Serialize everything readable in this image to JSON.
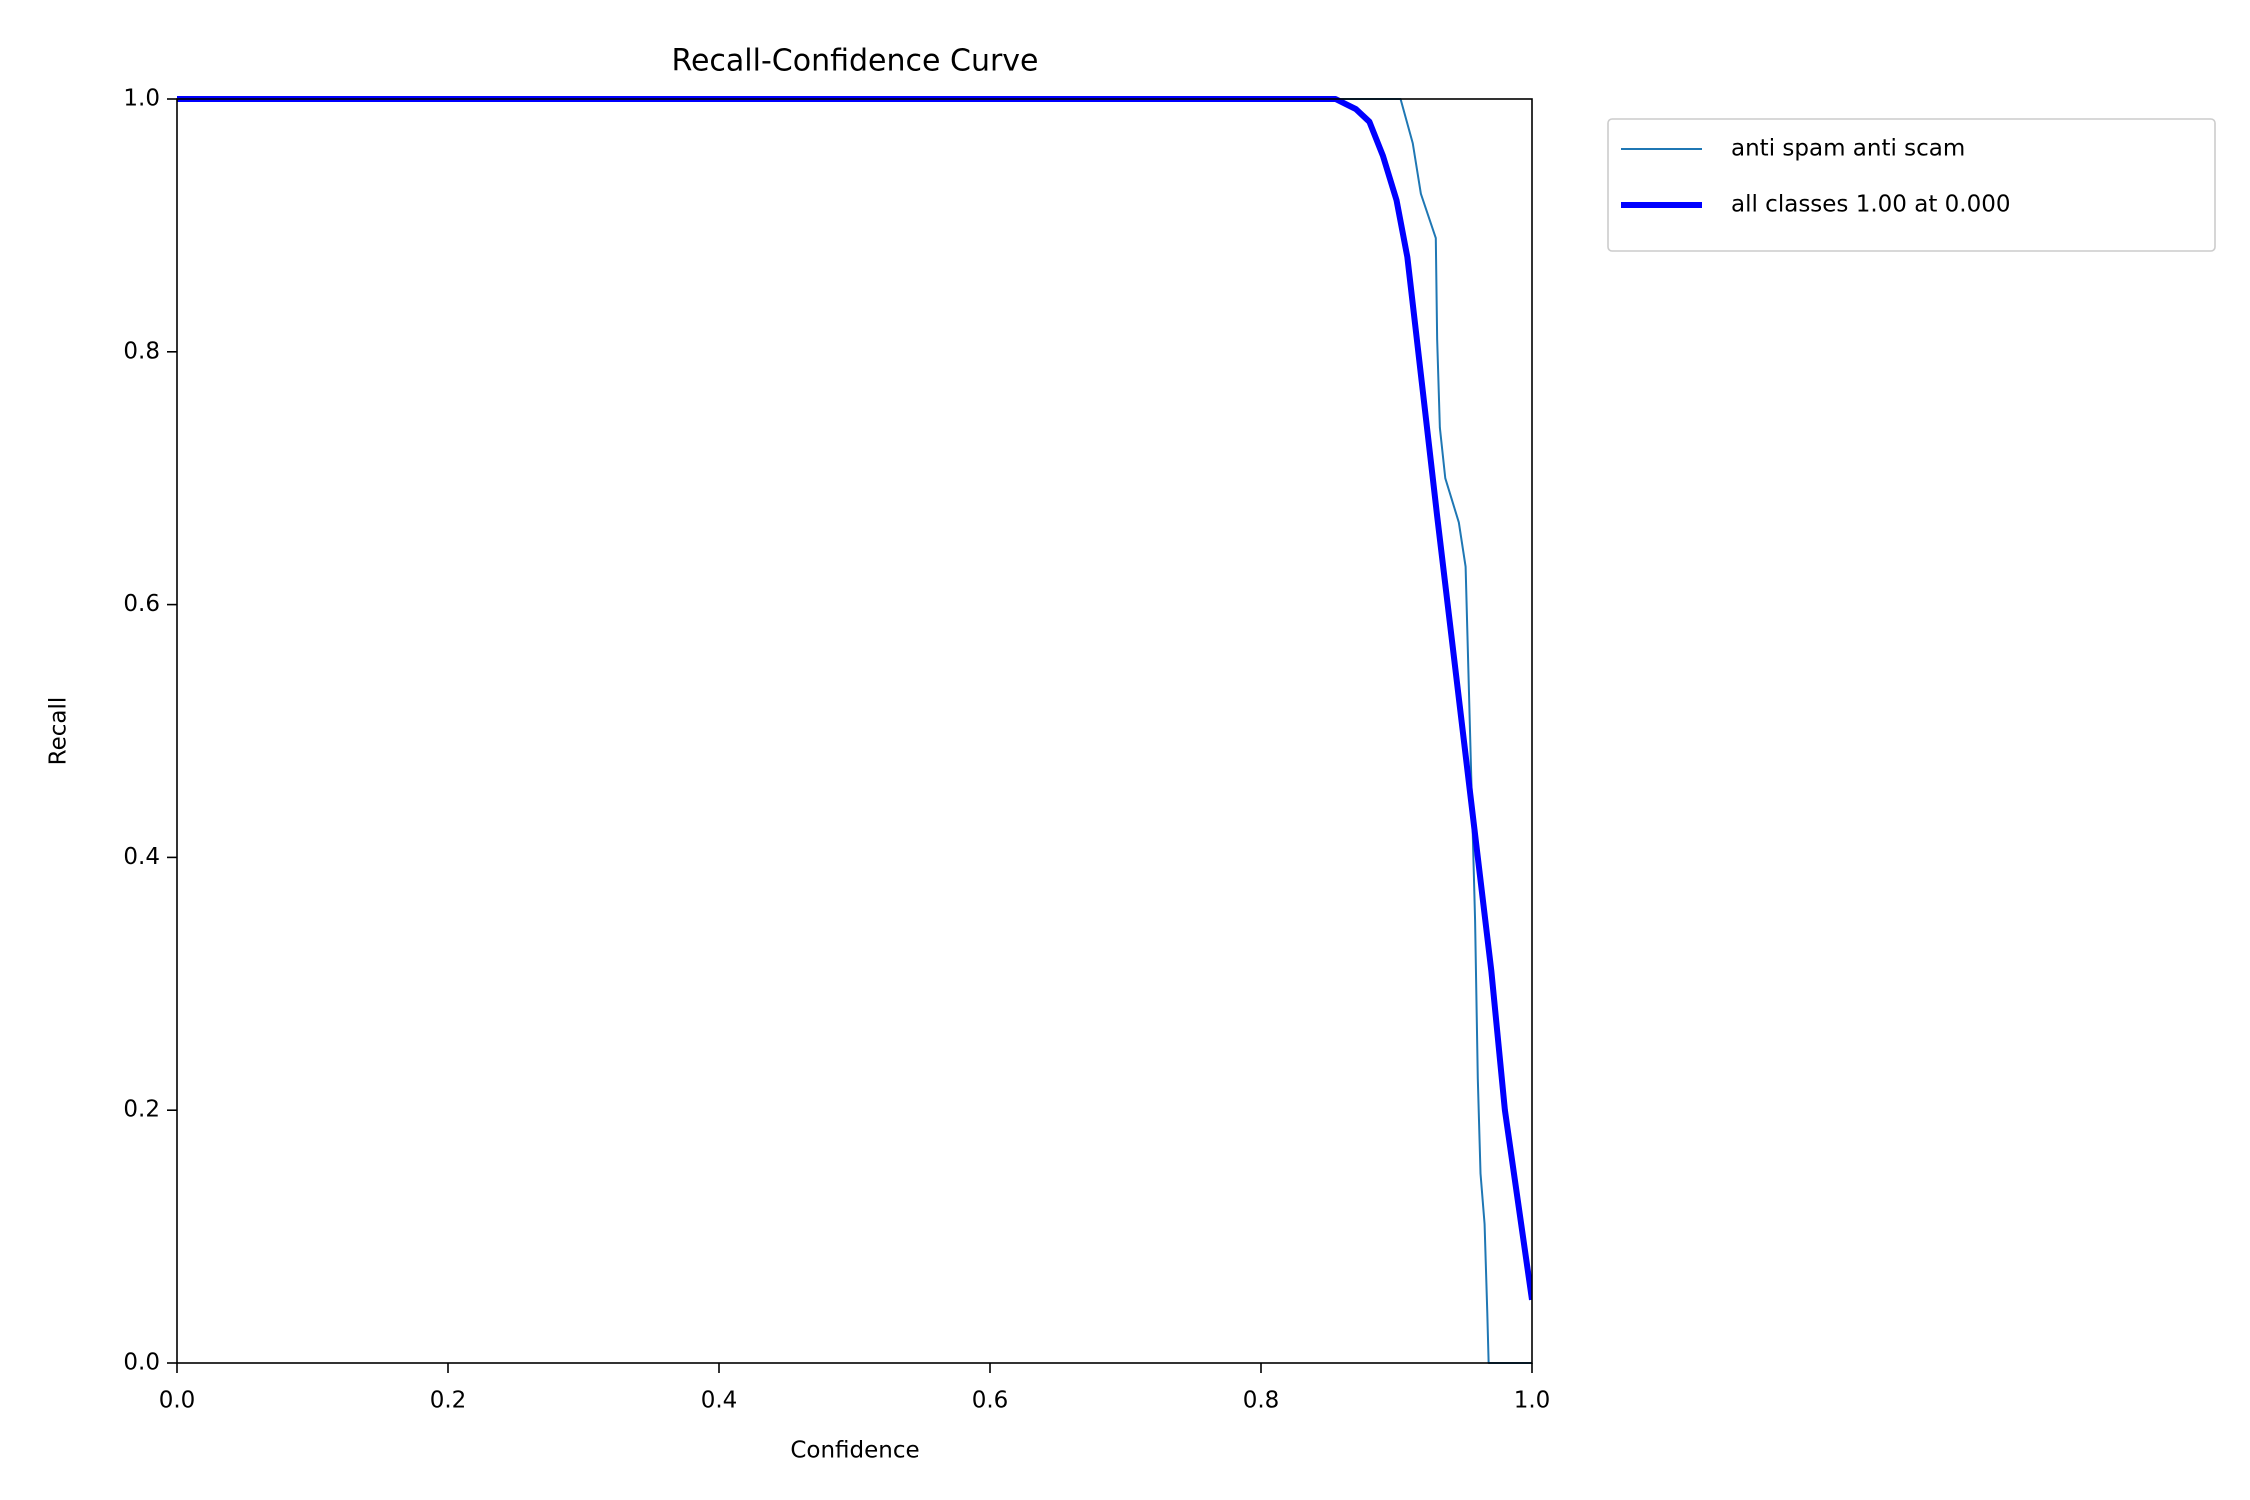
{
  "chart_data": {
    "type": "line",
    "title": "Recall-Confidence Curve",
    "x_label": "Confidence",
    "y_label": "Recall",
    "xlim": [
      0,
      1
    ],
    "ylim": [
      0,
      1
    ],
    "xticks": [
      {
        "value": 0,
        "label": "0.0"
      },
      0.2,
      0.4,
      0.6,
      0.8,
      {
        "value": 1,
        "label": "1.0"
      }
    ],
    "yticks": [
      {
        "value": 0,
        "label": "0.0"
      },
      0.2,
      0.4,
      0.6,
      0.8,
      {
        "value": 1,
        "label": "1.0"
      }
    ],
    "legend": "outside upper right",
    "series": [
      {
        "name": "anti spam anti scam",
        "color": "#1f77b4",
        "line_width": 2,
        "x": [
          0,
          0.903,
          0.912,
          0.918,
          0.929,
          0.93,
          0.932,
          0.936,
          0.946,
          0.951,
          0.953,
          0.958,
          0.96,
          0.962,
          0.965,
          0.967,
          0.968,
          1.0
        ],
        "values": [
          1.0,
          1.0,
          0.965,
          0.925,
          0.89,
          0.81,
          0.74,
          0.7,
          0.665,
          0.63,
          0.55,
          0.35,
          0.225,
          0.15,
          0.11,
          0.04,
          0.0,
          0.0
        ]
      },
      {
        "name": "all classes 1.00 at 0.000",
        "color": "#0000ff",
        "line_width": 6,
        "x": [
          0,
          0.855,
          0.87,
          0.88,
          0.89,
          0.9,
          0.908,
          0.915,
          0.93,
          0.95,
          0.96,
          0.97,
          0.98,
          1.0
        ],
        "values": [
          1.0,
          1.0,
          0.992,
          0.982,
          0.955,
          0.92,
          0.875,
          0.81,
          0.67,
          0.49,
          0.4,
          0.31,
          0.2,
          0.05
        ]
      }
    ]
  }
}
